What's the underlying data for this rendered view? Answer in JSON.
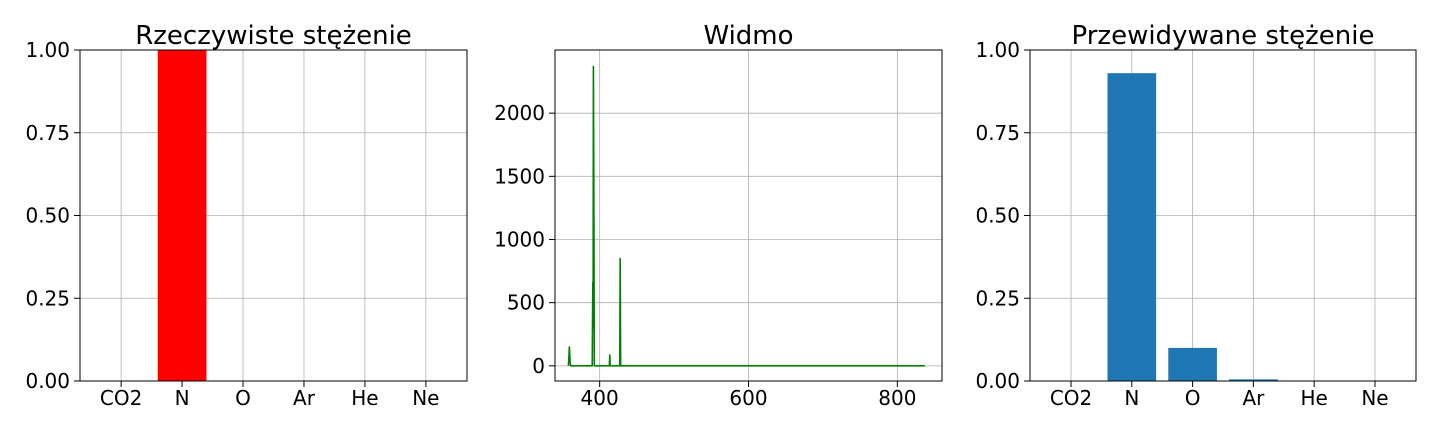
{
  "chart_data": [
    {
      "type": "bar",
      "title": "Rzeczywiste stężenie",
      "categories": [
        "CO2",
        "N",
        "O",
        "Ar",
        "He",
        "Ne"
      ],
      "values": [
        0,
        1.0,
        0,
        0,
        0,
        0
      ],
      "color": "#ff0000",
      "ylim": [
        0,
        1.0
      ],
      "yticks": [
        "0.00",
        "0.25",
        "0.50",
        "0.75",
        "1.00"
      ],
      "grid": true
    },
    {
      "type": "line",
      "title": "Widmo",
      "xlim": [
        340,
        860
      ],
      "ylim": [
        -120,
        2500
      ],
      "xticks": [
        400,
        600,
        800
      ],
      "yticks": [
        0,
        500,
        1000,
        1500,
        2000
      ],
      "color": "#008000",
      "x": [
        358,
        358.5,
        359.3,
        360.2,
        361,
        390,
        390.8,
        391.2,
        391.6,
        392.3,
        392.8,
        393.5,
        413,
        413.6,
        414.2,
        427,
        427.6,
        428.2,
        837
      ],
      "y": [
        0,
        50,
        150,
        40,
        0,
        0,
        660,
        300,
        2370,
        1200,
        0,
        0,
        0,
        85,
        0,
        0,
        850,
        0,
        0
      ],
      "grid": true
    },
    {
      "type": "bar",
      "title": "Przewidywane stężenie",
      "categories": [
        "CO2",
        "N",
        "O",
        "Ar",
        "He",
        "Ne"
      ],
      "values": [
        0,
        0.93,
        0.1,
        0.005,
        0,
        0
      ],
      "color": "#1f77b4",
      "ylim": [
        0,
        1.0
      ],
      "yticks": [
        "0.00",
        "0.25",
        "0.50",
        "0.75",
        "1.00"
      ],
      "grid": true
    }
  ]
}
